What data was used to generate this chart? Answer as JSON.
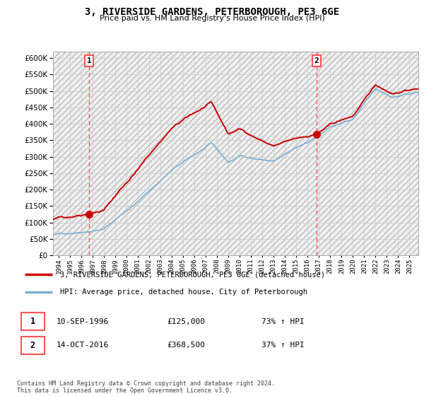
{
  "title": "3, RIVERSIDE GARDENS, PETERBOROUGH, PE3 6GE",
  "subtitle": "Price paid vs. HM Land Registry's House Price Index (HPI)",
  "sale1_date": "10-SEP-1996",
  "sale1_price": 125000,
  "sale1_label": "73% ↑ HPI",
  "sale2_date": "14-OCT-2016",
  "sale2_price": 368500,
  "sale2_label": "37% ↑ HPI",
  "legend_line1": "3, RIVERSIDE GARDENS, PETERBOROUGH, PE3 6GE (detached house)",
  "legend_line2": "HPI: Average price, detached house, City of Peterborough",
  "footer": "Contains HM Land Registry data © Crown copyright and database right 2024.\nThis data is licensed under the Open Government Licence v3.0.",
  "hpi_color": "#7ab0d4",
  "price_color": "#cc0000",
  "vline_color": "#ff5555",
  "ylim_min": 0,
  "ylim_max": 620000,
  "xstart": 1993.5,
  "xend": 2025.8,
  "sale1_x": 1996.7,
  "sale2_x": 2016.8
}
